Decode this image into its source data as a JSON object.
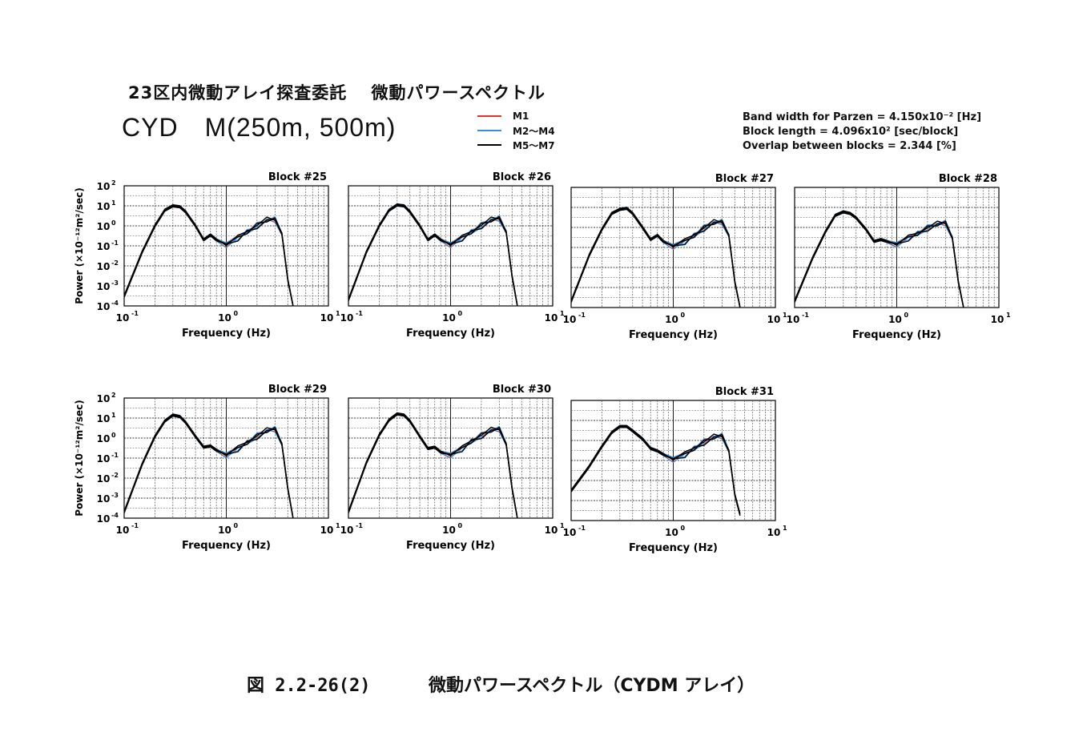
{
  "header": {
    "title": "23区内微動アレイ探査委託　 微動パワースペクトル",
    "subtitle": "CYD　M(250m, 500m)"
  },
  "legend": [
    {
      "label": "M1",
      "color": "#e8302a"
    },
    {
      "label": "M2～M4",
      "color": "#3a8fd8"
    },
    {
      "label": "M5～M7",
      "color": "#000000"
    }
  ],
  "params": {
    "band": "Band width for Parzen = 4.150x10⁻² [Hz]",
    "block_length": "Block length = 4.096x10² [sec/block]",
    "overlap": "Overlap between blocks = 2.344 [%]"
  },
  "caption": {
    "number": "図 2.2-26(2)",
    "text": "微動パワースペクトル（CYDM アレイ）"
  },
  "chart_data": [
    {
      "type": "line",
      "title": "Block #25",
      "xlabel": "Frequency (Hz)",
      "ylabel": "Power (×10⁻¹²m²/sec)",
      "xscale": "log",
      "yscale": "log",
      "xlim": [
        0.1,
        10
      ],
      "ylim": [
        0.0001,
        100
      ],
      "x": [
        0.1,
        0.15,
        0.2,
        0.25,
        0.3,
        0.35,
        0.4,
        0.5,
        0.6,
        0.7,
        0.8,
        1.0,
        1.3,
        1.6,
        2.0,
        2.5,
        3.0,
        3.5,
        4.0,
        4.5
      ],
      "y": [
        0.0003,
        0.05,
        1.0,
        6,
        10,
        9,
        5,
        1.0,
        0.2,
        0.35,
        0.2,
        0.12,
        0.25,
        0.5,
        1.0,
        2.0,
        2.2,
        0.4,
        0.002,
        0.0001
      ]
    },
    {
      "type": "line",
      "title": "Block #26",
      "xlabel": "Frequency (Hz)",
      "ylabel": "Power (×10⁻¹²m²/sec)",
      "xscale": "log",
      "yscale": "log",
      "xlim": [
        0.1,
        10
      ],
      "ylim": [
        0.0001,
        100
      ],
      "x": [
        0.1,
        0.15,
        0.2,
        0.25,
        0.3,
        0.35,
        0.4,
        0.5,
        0.6,
        0.7,
        0.8,
        1.0,
        1.3,
        1.6,
        2.0,
        2.5,
        3.0,
        3.5,
        4.0,
        4.5
      ],
      "y": [
        0.0002,
        0.05,
        1.0,
        6,
        11,
        10,
        5,
        1.0,
        0.2,
        0.35,
        0.2,
        0.12,
        0.25,
        0.5,
        1.0,
        2.0,
        2.5,
        0.5,
        0.003,
        0.0001
      ]
    },
    {
      "type": "line",
      "title": "Block #27",
      "xlabel": "Frequency (Hz)",
      "ylabel": "Power (×10⁻¹²m²/sec)",
      "xscale": "log",
      "yscale": "log",
      "xlim": [
        0.1,
        10
      ],
      "ylim": [
        0.0001,
        100
      ],
      "x": [
        0.1,
        0.15,
        0.2,
        0.25,
        0.3,
        0.35,
        0.4,
        0.5,
        0.6,
        0.7,
        0.8,
        1.0,
        1.3,
        1.6,
        2.0,
        2.5,
        3.0,
        3.5,
        4.0,
        4.5
      ],
      "y": [
        0.0002,
        0.04,
        0.8,
        5,
        8,
        9,
        5,
        1.0,
        0.25,
        0.4,
        0.2,
        0.12,
        0.2,
        0.4,
        0.9,
        1.8,
        2.0,
        0.4,
        0.002,
        0.0001
      ]
    },
    {
      "type": "line",
      "title": "Block #28",
      "xlabel": "Frequency (Hz)",
      "ylabel": "Power (×10⁻¹²m²/sec)",
      "xscale": "log",
      "yscale": "log",
      "xlim": [
        0.1,
        10
      ],
      "ylim": [
        0.0001,
        100
      ],
      "x": [
        0.1,
        0.15,
        0.2,
        0.25,
        0.3,
        0.35,
        0.4,
        0.5,
        0.6,
        0.7,
        0.8,
        1.0,
        1.3,
        1.6,
        2.0,
        2.5,
        3.0,
        3.5,
        4.0,
        4.5
      ],
      "y": [
        0.0002,
        0.03,
        0.6,
        4,
        6,
        5,
        3,
        0.8,
        0.2,
        0.25,
        0.2,
        0.15,
        0.3,
        0.5,
        0.9,
        1.5,
        1.8,
        0.3,
        0.002,
        0.0001
      ]
    },
    {
      "type": "line",
      "title": "Block #29",
      "xlabel": "Frequency (Hz)",
      "ylabel": "Power (×10⁻¹²m²/sec)",
      "xscale": "log",
      "yscale": "log",
      "xlim": [
        0.1,
        10
      ],
      "ylim": [
        0.0001,
        100
      ],
      "x": [
        0.1,
        0.15,
        0.2,
        0.25,
        0.3,
        0.35,
        0.4,
        0.5,
        0.6,
        0.7,
        0.8,
        1.0,
        1.3,
        1.6,
        2.0,
        2.5,
        3.0,
        3.5,
        4.0,
        4.5
      ],
      "y": [
        0.0002,
        0.05,
        1.2,
        7,
        14,
        12,
        6,
        1.2,
        0.35,
        0.4,
        0.25,
        0.15,
        0.3,
        0.6,
        1.2,
        2.4,
        3.0,
        0.5,
        0.003,
        0.0001
      ]
    },
    {
      "type": "line",
      "title": "Block #30",
      "xlabel": "Frequency (Hz)",
      "ylabel": "Power (×10⁻¹²m²/sec)",
      "xscale": "log",
      "yscale": "log",
      "xlim": [
        0.1,
        10
      ],
      "ylim": [
        0.0001,
        100
      ],
      "x": [
        0.1,
        0.15,
        0.2,
        0.25,
        0.3,
        0.35,
        0.4,
        0.5,
        0.6,
        0.7,
        0.8,
        1.0,
        1.3,
        1.6,
        2.0,
        2.5,
        3.0,
        3.5,
        4.0,
        4.5
      ],
      "y": [
        0.0002,
        0.06,
        1.4,
        8,
        16,
        14,
        7,
        1.2,
        0.3,
        0.35,
        0.2,
        0.15,
        0.3,
        0.7,
        1.3,
        2.5,
        3.0,
        0.5,
        0.003,
        0.0001
      ]
    },
    {
      "type": "line",
      "title": "Block #31",
      "xlabel": "Frequency (Hz)",
      "ylabel": "Power (×10⁻¹²m²/sec)",
      "xscale": "log",
      "yscale": "log",
      "xlim": [
        0.1,
        10
      ],
      "ylim": [
        0.0001,
        100
      ],
      "x": [
        0.1,
        0.15,
        0.2,
        0.25,
        0.3,
        0.35,
        0.4,
        0.5,
        0.6,
        0.7,
        0.8,
        1.0,
        1.3,
        1.6,
        2.0,
        2.5,
        3.0,
        3.5,
        4.0,
        4.5
      ],
      "y": [
        0.003,
        0.05,
        0.5,
        2.5,
        5,
        5,
        3,
        1.2,
        0.4,
        0.3,
        0.2,
        0.12,
        0.2,
        0.4,
        0.8,
        1.5,
        1.8,
        0.3,
        0.002,
        0.0002
      ]
    }
  ]
}
